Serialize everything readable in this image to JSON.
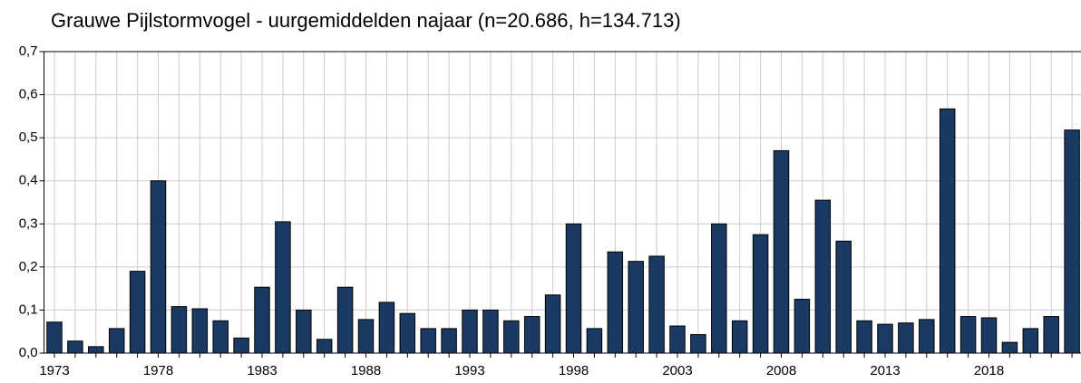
{
  "chart_data": {
    "type": "bar",
    "title": "Grauwe Pijlstormvogel - uurgemiddelden najaar (n=20.686, h=134.713)",
    "categories": [
      "1973",
      null,
      null,
      null,
      null,
      "1978",
      null,
      null,
      null,
      null,
      "1983",
      null,
      null,
      null,
      null,
      "1988",
      null,
      null,
      null,
      null,
      "1993",
      null,
      null,
      null,
      null,
      "1998",
      null,
      null,
      null,
      null,
      "2003",
      null,
      null,
      null,
      null,
      "2008",
      null,
      null,
      null,
      null,
      "2013",
      null,
      null,
      null,
      null,
      "2018",
      null,
      null,
      null,
      null
    ],
    "values": [
      0.072,
      0.028,
      0.015,
      0.057,
      0.19,
      0.4,
      0.108,
      0.103,
      0.075,
      0.035,
      0.153,
      0.305,
      0.1,
      0.032,
      0.153,
      0.078,
      0.118,
      0.092,
      0.057,
      0.057,
      0.1,
      0.1,
      0.075,
      0.085,
      0.135,
      0.3,
      0.057,
      0.235,
      0.213,
      0.225,
      0.063,
      0.043,
      0.3,
      0.075,
      0.275,
      0.47,
      0.125,
      0.355,
      0.26,
      0.075,
      0.067,
      0.07,
      0.078,
      0.567,
      0.085,
      0.082,
      0.025,
      0.057,
      0.085,
      0.518
    ],
    "color": "#1b3a63",
    "ylim": [
      0,
      0.7
    ],
    "yticks": [
      {
        "value": 0,
        "label": "0,0"
      },
      {
        "value": 0.1,
        "label": "0,1"
      },
      {
        "value": 0.2,
        "label": "0,2"
      },
      {
        "value": 0.3,
        "label": "0,3"
      },
      {
        "value": 0.4,
        "label": "0,4"
      },
      {
        "value": 0.5,
        "label": "0,5"
      },
      {
        "value": 0.6,
        "label": "0,6"
      },
      {
        "value": 0.7,
        "label": "0,7"
      }
    ],
    "grid": true
  }
}
